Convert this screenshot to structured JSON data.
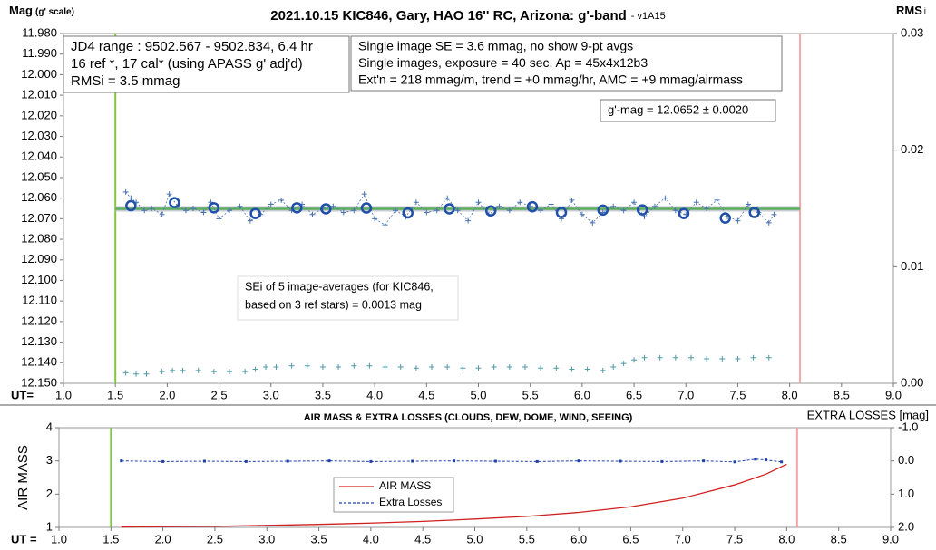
{
  "chart_data": [
    {
      "type": "scatter",
      "title": "2021.10.15 KIC846, Gary, HAO 16'' RC, Arizona: g'-band",
      "version": "- v1A15",
      "ylabel": "Mag",
      "ylabel_sub": "(g' scale)",
      "y2label": "RMS",
      "y2label_sub": "i",
      "xlabel": "UT=",
      "xlim": [
        1.0,
        9.0
      ],
      "xticks": [
        {
          "value": 1,
          "label": "1.0"
        },
        {
          "value": 1.5,
          "label": "1.5"
        },
        {
          "value": 2,
          "label": "2.0"
        },
        {
          "value": 2.5,
          "label": "2.5"
        },
        {
          "value": 3,
          "label": "3.0"
        },
        {
          "value": 3.5,
          "label": "3.5"
        },
        {
          "value": 4,
          "label": "4.0"
        },
        {
          "value": 4.5,
          "label": "4.5"
        },
        {
          "value": 5,
          "label": "5.0"
        },
        {
          "value": 5.5,
          "label": "5.5"
        },
        {
          "value": 6,
          "label": "6.0"
        },
        {
          "value": 6.5,
          "label": "6.5"
        },
        {
          "value": 7,
          "label": "7.0"
        },
        {
          "value": 7.5,
          "label": "7.5"
        },
        {
          "value": 8,
          "label": "8.0"
        },
        {
          "value": 8.5,
          "label": "8.5"
        },
        {
          "value": 9,
          "label": "9.0"
        }
      ],
      "ylim": [
        12.15,
        11.98
      ],
      "yticks": [
        {
          "value": 11.98,
          "label": "11.980"
        },
        {
          "value": 11.99,
          "label": "11.990"
        },
        {
          "value": 12.0,
          "label": "12.000"
        },
        {
          "value": 12.01,
          "label": "12.010"
        },
        {
          "value": 12.02,
          "label": "12.020"
        },
        {
          "value": 12.03,
          "label": "12.030"
        },
        {
          "value": 12.04,
          "label": "12.040"
        },
        {
          "value": 12.05,
          "label": "12.050"
        },
        {
          "value": 12.06,
          "label": "12.060"
        },
        {
          "value": 12.07,
          "label": "12.070"
        },
        {
          "value": 12.08,
          "label": "12.080"
        },
        {
          "value": 12.09,
          "label": "12.090"
        },
        {
          "value": 12.1,
          "label": "12.100"
        },
        {
          "value": 12.11,
          "label": "12.110"
        },
        {
          "value": 12.12,
          "label": "12.120"
        },
        {
          "value": 12.13,
          "label": "12.130"
        },
        {
          "value": 12.14,
          "label": "12.140"
        },
        {
          "value": 12.15,
          "label": "12.150"
        }
      ],
      "y2lim": [
        0,
        0.03
      ],
      "y2ticks": [
        0.03,
        0.02,
        0.01,
        {
          "value": 0,
          "label": "0.00"
        }
      ],
      "vlines": [
        {
          "x": 1.5,
          "color": "#80c840"
        },
        {
          "x": 8.1,
          "color": "#f4a6a6"
        }
      ],
      "fit_line": {
        "x": [
          1.5,
          8.1
        ],
        "values": [
          12.0652,
          12.0652
        ],
        "color": "#5cae5c"
      },
      "series": [
        {
          "marker": "plus",
          "line": "dotted",
          "color": "#4a72b0",
          "x": [
            1.6,
            1.65,
            1.7,
            1.78,
            1.85,
            1.95,
            2.02,
            2.1,
            2.18,
            2.25,
            2.35,
            2.42,
            2.5,
            2.6,
            2.7,
            2.8,
            2.9,
            3.0,
            3.1,
            3.2,
            3.3,
            3.4,
            3.5,
            3.6,
            3.7,
            3.8,
            3.9,
            4.0,
            4.1,
            4.2,
            4.3,
            4.4,
            4.5,
            4.6,
            4.7,
            4.8,
            4.9,
            5.0,
            5.1,
            5.2,
            5.3,
            5.4,
            5.5,
            5.6,
            5.7,
            5.8,
            5.9,
            6.0,
            6.1,
            6.2,
            6.3,
            6.4,
            6.5,
            6.6,
            6.7,
            6.8,
            6.9,
            7.0,
            7.1,
            7.2,
            7.3,
            7.4,
            7.5,
            7.6,
            7.7,
            7.8,
            7.85
          ],
          "values": [
            12.057,
            12.06,
            12.062,
            12.066,
            12.065,
            12.068,
            12.058,
            12.064,
            12.066,
            12.065,
            12.067,
            12.062,
            12.07,
            12.066,
            12.064,
            12.071,
            12.068,
            12.063,
            12.061,
            12.066,
            12.063,
            12.068,
            12.065,
            12.064,
            12.067,
            12.066,
            12.058,
            12.07,
            12.073,
            12.066,
            12.069,
            12.062,
            12.067,
            12.066,
            12.06,
            12.066,
            12.071,
            12.062,
            12.068,
            12.064,
            12.066,
            12.062,
            12.064,
            12.066,
            12.063,
            12.07,
            12.061,
            12.068,
            12.072,
            12.067,
            12.064,
            12.066,
            12.062,
            12.069,
            12.064,
            12.06,
            12.066,
            12.068,
            12.062,
            12.065,
            12.061,
            12.069,
            12.071,
            12.063,
            12.067,
            12.072,
            12.068
          ]
        },
        {
          "marker": "circle",
          "color": "#1f4fa8",
          "x": [
            1.65,
            2.07,
            2.45,
            2.85,
            3.25,
            3.53,
            3.92,
            4.32,
            4.72,
            5.12,
            5.52,
            5.8,
            6.2,
            6.58,
            6.98,
            7.38,
            7.66
          ],
          "values": [
            12.0637,
            12.0622,
            12.0647,
            12.0675,
            12.0647,
            12.0652,
            12.0648,
            12.0672,
            12.0652,
            12.0662,
            12.0642,
            12.067,
            12.0658,
            12.0657,
            12.0675,
            12.0697,
            12.067
          ]
        },
        {
          "marker": "plus",
          "axis": "y2",
          "color": "#4e9aa6",
          "x": [
            1.6,
            1.7,
            1.8,
            1.95,
            2.05,
            2.15,
            2.3,
            2.45,
            2.6,
            2.75,
            2.85,
            2.95,
            3.05,
            3.2,
            3.35,
            3.5,
            3.65,
            3.8,
            3.95,
            4.1,
            4.25,
            4.4,
            4.55,
            4.7,
            4.85,
            5.0,
            5.15,
            5.3,
            5.45,
            5.6,
            5.75,
            5.9,
            6.05,
            6.2,
            6.3,
            6.4,
            6.5,
            6.6,
            6.75,
            6.9,
            7.05,
            7.2,
            7.35,
            7.5,
            7.65,
            7.8
          ],
          "values": [
            0.0009,
            0.0008,
            0.0008,
            0.001,
            0.0011,
            0.0011,
            0.0011,
            0.001,
            0.001,
            0.001,
            0.0012,
            0.0014,
            0.0014,
            0.0015,
            0.0015,
            0.0014,
            0.0014,
            0.0015,
            0.0015,
            0.0014,
            0.0014,
            0.0013,
            0.0014,
            0.0014,
            0.0013,
            0.0013,
            0.0014,
            0.0014,
            0.0014,
            0.0013,
            0.0013,
            0.0012,
            0.0012,
            0.0011,
            0.0014,
            0.0017,
            0.002,
            0.0022,
            0.0022,
            0.0022,
            0.0022,
            0.0021,
            0.0021,
            0.0021,
            0.0022,
            0.0022
          ]
        }
      ],
      "annotations": [
        {
          "lines": [
            "JD4 range : 9502.567 - 9502.834,  6.4  hr",
            "16 ref *, 17 cal* (using APASS g' adj'd)",
            "RMSi = 3.5 mmag"
          ]
        },
        {
          "lines": [
            "Single image SE = 3.6 mmag, no show  9-pt avgs",
            "Single images, exposure = 40 sec, Ap = 45x4x12b3",
            "Ext'n = 218 mmag/m, trend = +0 mmag/hr, AMC = +9 mmag/airmass"
          ]
        },
        {
          "lines": [
            "g'-mag = 12.0652 ± 0.0020"
          ]
        },
        {
          "lines": [
            "SEi of 5 image-averages (for KIC846,",
            "based on 3 ref stars) = 0.0013 mag"
          ]
        }
      ]
    },
    {
      "type": "line",
      "title": "AIR MASS & EXTRA LOSSES (CLOUDS, DEW, DOME, WIND, SEEING)",
      "ylabel": "AIR MASS",
      "y2label": "EXTRA LOSSES [mag]",
      "xlabel": "UT =",
      "xlim": [
        1.0,
        9.0
      ],
      "xticks": [
        {
          "value": 1,
          "label": "1.0"
        },
        {
          "value": 1.5,
          "label": "1.5"
        },
        {
          "value": 2,
          "label": "2.0"
        },
        {
          "value": 2.5,
          "label": "2.5"
        },
        {
          "value": 3,
          "label": "3.0"
        },
        {
          "value": 3.5,
          "label": "3.5"
        },
        {
          "value": 4,
          "label": "4.0"
        },
        {
          "value": 4.5,
          "label": "4.5"
        },
        {
          "value": 5,
          "label": "5.0"
        },
        {
          "value": 5.5,
          "label": "5.5"
        },
        {
          "value": 6,
          "label": "6.0"
        },
        {
          "value": 6.5,
          "label": "6.5"
        },
        {
          "value": 7,
          "label": "7.0"
        },
        {
          "value": 7.5,
          "label": "7.5"
        },
        {
          "value": 8,
          "label": "8.0"
        },
        {
          "value": 8.5,
          "label": "8.5"
        },
        {
          "value": 9,
          "label": "9.0"
        }
      ],
      "ylim": [
        1,
        4
      ],
      "yticks": [
        4,
        3,
        2,
        1
      ],
      "y2lim": [
        2,
        -1
      ],
      "y2ticks": [
        {
          "value": -1,
          "label": "-1.0"
        },
        {
          "value": 0,
          "label": "0.0"
        },
        {
          "value": 1,
          "label": "1.0"
        },
        {
          "value": 2,
          "label": "2.0"
        }
      ],
      "vlines": [
        {
          "x": 1.5,
          "color": "#80c840"
        },
        {
          "x": 8.1,
          "color": "#f4a6a6"
        }
      ],
      "series": [
        {
          "name": "AIR MASS",
          "color": "#d02020",
          "x": [
            1.6,
            2.0,
            2.5,
            3.0,
            3.5,
            4.0,
            4.5,
            5.0,
            5.5,
            6.0,
            6.5,
            7.0,
            7.5,
            7.8,
            8.0
          ],
          "values": [
            1.01,
            1.02,
            1.03,
            1.06,
            1.09,
            1.13,
            1.18,
            1.25,
            1.33,
            1.45,
            1.62,
            1.88,
            2.28,
            2.6,
            2.9
          ]
        },
        {
          "name": "Extra Losses",
          "color": "#1f3fa8",
          "axis": "y2",
          "dash": true,
          "x": [
            1.6,
            2.0,
            2.4,
            2.8,
            3.2,
            3.6,
            4.0,
            4.4,
            4.8,
            5.2,
            5.6,
            6.0,
            6.4,
            6.8,
            7.2,
            7.5,
            7.7,
            7.8,
            7.95
          ],
          "values": [
            0.0,
            0.02,
            0.01,
            0.02,
            0.01,
            0.0,
            0.02,
            0.01,
            0.0,
            0.01,
            0.02,
            0.0,
            0.01,
            0.02,
            0.0,
            0.03,
            -0.05,
            -0.03,
            0.03
          ]
        }
      ]
    }
  ]
}
